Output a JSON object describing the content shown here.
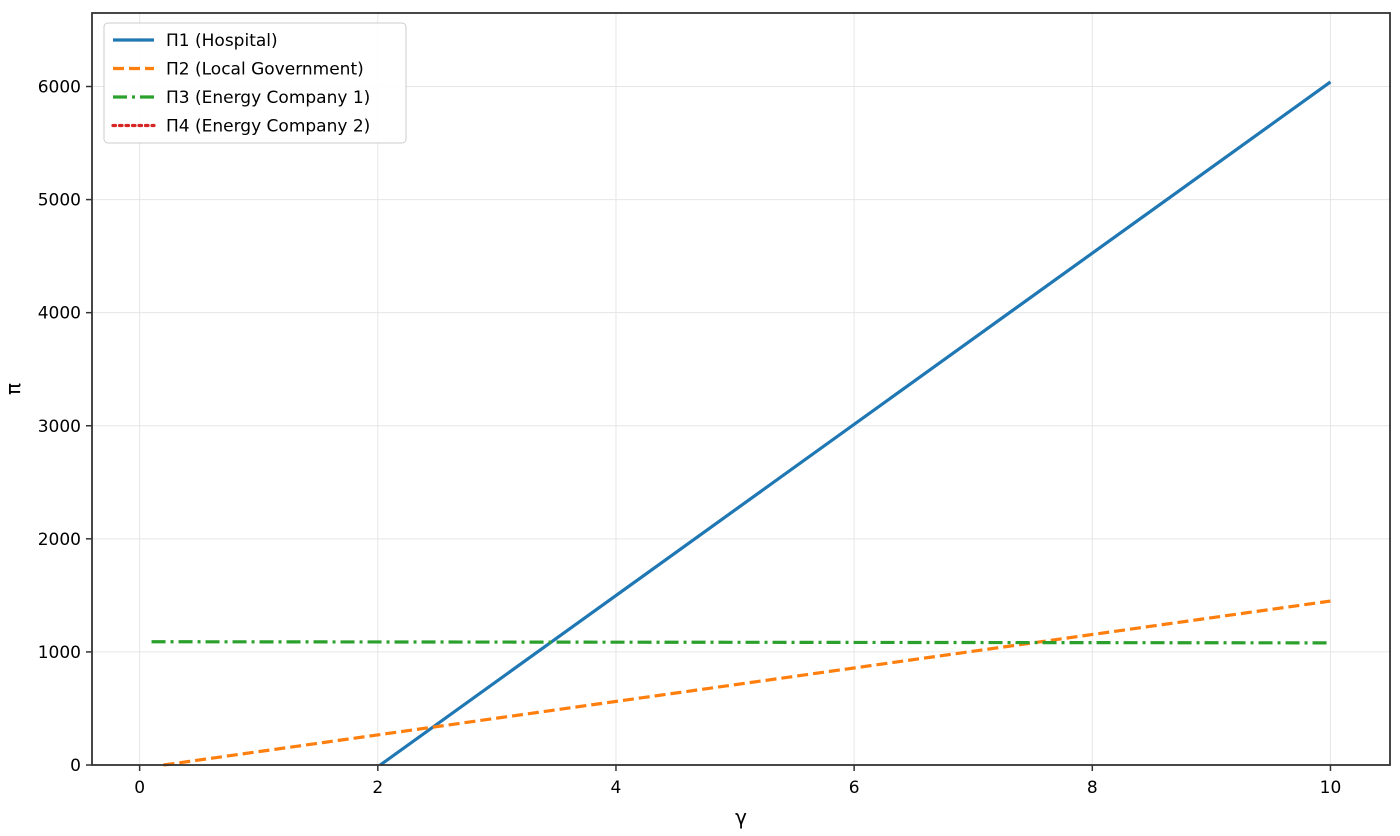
{
  "chart_data": {
    "type": "line",
    "title": "",
    "xlabel": "γ",
    "ylabel": "π",
    "xlim": [
      -0.4,
      10.5
    ],
    "ylim": [
      0,
      6650
    ],
    "xticks": [
      0,
      2,
      4,
      6,
      8,
      10
    ],
    "xtick_labels": [
      "0",
      "2",
      "4",
      "6",
      "8",
      "10"
    ],
    "yticks": [
      0,
      1000,
      2000,
      3000,
      4000,
      5000,
      6000
    ],
    "ytick_labels": [
      "0",
      "1000",
      "2000",
      "3000",
      "4000",
      "5000",
      "6000"
    ],
    "grid": true,
    "legend_position": "upper-left",
    "series": [
      {
        "name": "Π1 (Hospital)",
        "color": "#1f77b4",
        "style": "solid",
        "x": [
          2.02,
          10.0
        ],
        "y": [
          0,
          6040
        ]
      },
      {
        "name": "Π2 (Local Government)",
        "color": "#ff7f0e",
        "style": "dashed",
        "x": [
          0.2,
          10.0
        ],
        "y": [
          0,
          1450
        ]
      },
      {
        "name": "Π3 (Energy Company 1)",
        "color": "#2ca02c",
        "style": "dashdot",
        "x": [
          0.1,
          10.0
        ],
        "y": [
          1090,
          1080
        ]
      },
      {
        "name": "Π4 (Energy Company 2)",
        "color": "#d62728",
        "style": "dotted",
        "x": [],
        "y": []
      }
    ]
  }
}
